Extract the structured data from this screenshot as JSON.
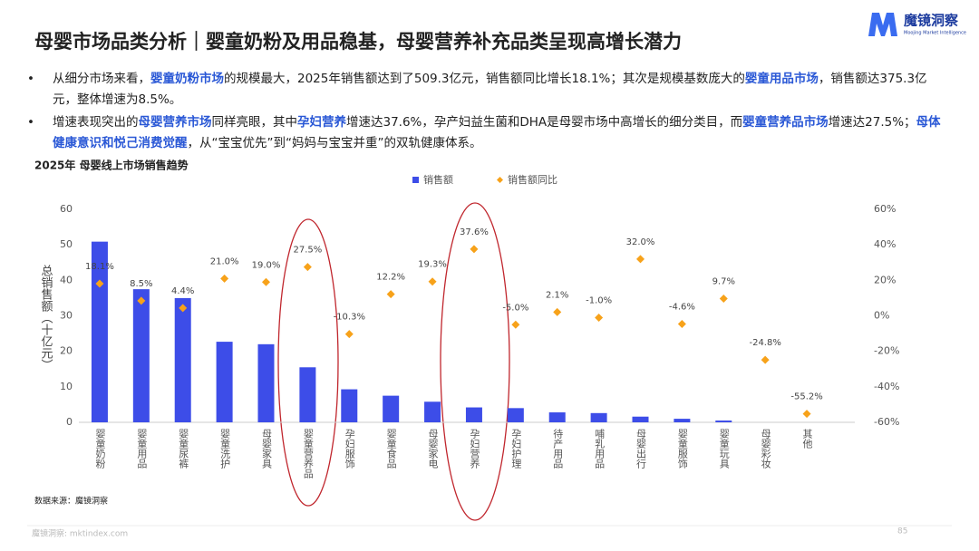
{
  "title": "母婴市场品类分析｜婴童奶粉及用品稳基，母婴营养补充品类呈现高增长潜力",
  "logo": {
    "name": "魔镜洞察",
    "tagline": "Moojing Market Intelligence"
  },
  "bullets": [
    [
      {
        "text": "从细分市场来看，"
      },
      {
        "text": "婴童奶粉市场",
        "strong": true
      },
      {
        "text": "的规模最大，2025年销售额达到了509.3亿元，销售额同比增长18.1%；其次是规模基数庞大的"
      },
      {
        "text": "婴童用品市场",
        "strong": true
      },
      {
        "text": "，销售额达375.3亿元，整体增速为8.5%。"
      }
    ],
    [
      {
        "text": "增速表现突出的"
      },
      {
        "text": "母婴营养市场",
        "strong": true
      },
      {
        "text": "同样亮眼，其中"
      },
      {
        "text": "孕妇营养",
        "strong": true
      },
      {
        "text": "增速达37.6%，孕产妇益生菌和DHA是母婴市场中高增长的细分类目，而"
      },
      {
        "text": "婴童营养品市场",
        "strong": true
      },
      {
        "text": "增速达27.5%；"
      },
      {
        "text": "母体健康意识和悦己消费觉醒",
        "strong": true
      },
      {
        "text": "，从“宝宝优先”到“妈妈与宝宝并重”的双轨健康体系。"
      }
    ]
  ],
  "chart_data": {
    "type": "bar",
    "title": "2025年 母婴线上市场销售趋势",
    "y_label": "总销售额（十亿元）",
    "categories": [
      "婴童奶粉",
      "婴童用品",
      "婴童尿裤",
      "婴童洗护",
      "母婴家具",
      "婴童营养品",
      "孕妇服饰",
      "婴童食品",
      "母婴家电",
      "孕妇营养",
      "孕妇护理",
      "待产用品",
      "哺乳用品",
      "母婴出行",
      "婴童服饰",
      "婴童玩具",
      "母婴彩妆",
      "其他"
    ],
    "series": [
      {
        "name": "销售额",
        "type": "bar",
        "color": "#3d4de8",
        "values": [
          50.9,
          37.5,
          35,
          22.7,
          22,
          15.5,
          9.3,
          7.5,
          5.8,
          4.2,
          4,
          2.8,
          2.6,
          1.6,
          1,
          0.5,
          0,
          0
        ]
      },
      {
        "name": "销售额同比",
        "type": "scatter",
        "color": "#f7a21a",
        "axis": "y2",
        "values": [
          18.1,
          8.5,
          4.4,
          21,
          19,
          27.5,
          -10.3,
          12.2,
          19.3,
          37.6,
          -5,
          2.1,
          -1,
          32,
          -4.6,
          9.7,
          -24.8,
          -55.2
        ],
        "value_labels": [
          "18.1%",
          "8.5%",
          "4.4%",
          "21.0%",
          "19.0%",
          "27.5%",
          "-10.3%",
          "12.2%",
          "19.3%",
          "37.6%",
          "-5.0%",
          "2.1%",
          "-1.0%",
          "32.0%",
          "-4.6%",
          "9.7%",
          "-24.8%",
          "-55.2%"
        ]
      }
    ],
    "ylim": [
      0,
      60
    ],
    "yticks": [
      0,
      10,
      20,
      30,
      40,
      50,
      60
    ],
    "y2lim": [
      -60,
      60
    ],
    "y2ticks": [
      {
        "value": -60,
        "label": "-60%"
      },
      {
        "value": -40,
        "label": "-40%"
      },
      {
        "value": -20,
        "label": "-20%"
      },
      {
        "value": 0,
        "label": "0%"
      },
      {
        "value": 20,
        "label": "20%"
      },
      {
        "value": 40,
        "label": "40%"
      },
      {
        "value": 60,
        "label": "60%"
      }
    ]
  },
  "source": "数据来源：魔镜洞察",
  "footer": "魔镜洞察: mktindex.com",
  "page_number": "85"
}
